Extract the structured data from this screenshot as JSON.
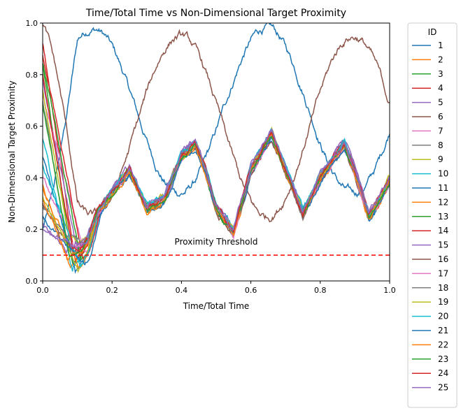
{
  "chart_data": {
    "type": "line",
    "title": "Time/Total Time vs Non-Dimensional Target Proximity",
    "xlabel": "Time/Total Time",
    "ylabel": "Non-Dimensional Target Proximity",
    "xlim": [
      0.0,
      1.0
    ],
    "ylim": [
      0.0,
      1.0
    ],
    "x_ticks": [
      "0.0",
      "0.2",
      "0.4",
      "0.6",
      "0.8",
      "1.0"
    ],
    "y_ticks": [
      "0.0",
      "0.2",
      "0.4",
      "0.6",
      "0.8",
      "1.0"
    ],
    "grid": false,
    "legend": {
      "title": "ID",
      "placement": "outside-right"
    },
    "threshold": {
      "value": 0.1,
      "label": "Proximity Threshold",
      "color": "#ff0000",
      "style": "dashed"
    },
    "series": [
      {
        "name": "1",
        "color": "#1f77b4",
        "start": 0.2,
        "mode": "wave",
        "amp": 0.32,
        "period": 0.5,
        "phase": 0.02,
        "center": 0.66
      },
      {
        "name": "2",
        "color": "#ff7f0e",
        "start": 0.38
      },
      {
        "name": "3",
        "color": "#2ca02c",
        "start": 0.84
      },
      {
        "name": "4",
        "color": "#d62728",
        "start": 0.92
      },
      {
        "name": "5",
        "color": "#9467bd",
        "start": 0.78
      },
      {
        "name": "6",
        "color": "#8c564b",
        "start": 1.0,
        "mode": "wave",
        "amp": 0.35,
        "period": 0.5,
        "phase": 0.27,
        "center": 0.6
      },
      {
        "name": "7",
        "color": "#e377c2",
        "start": 0.72
      },
      {
        "name": "8",
        "color": "#7f7f7f",
        "start": 0.7
      },
      {
        "name": "9",
        "color": "#bcbd22",
        "start": 0.74
      },
      {
        "name": "10",
        "color": "#17becf",
        "start": 0.55
      },
      {
        "name": "11",
        "color": "#1f77b4",
        "start": 0.48
      },
      {
        "name": "12",
        "color": "#ff7f0e",
        "start": 0.36
      },
      {
        "name": "13",
        "color": "#2ca02c",
        "start": 0.85
      },
      {
        "name": "14",
        "color": "#d62728",
        "start": 0.88
      },
      {
        "name": "15",
        "color": "#9467bd",
        "start": 0.22
      },
      {
        "name": "16",
        "color": "#8c564b",
        "start": 0.3
      },
      {
        "name": "17",
        "color": "#e377c2",
        "start": 0.4
      },
      {
        "name": "18",
        "color": "#7f7f7f",
        "start": 0.28
      },
      {
        "name": "19",
        "color": "#bcbd22",
        "start": 0.33
      },
      {
        "name": "20",
        "color": "#17becf",
        "start": 0.45
      },
      {
        "name": "21",
        "color": "#1f77b4",
        "start": 0.25
      },
      {
        "name": "22",
        "color": "#ff7f0e",
        "start": 0.31
      },
      {
        "name": "23",
        "color": "#2ca02c",
        "start": 0.68
      },
      {
        "name": "24",
        "color": "#d62728",
        "start": 0.8
      },
      {
        "name": "25",
        "color": "#9467bd",
        "start": 0.2
      }
    ],
    "common_path": {
      "x": [
        0.1,
        0.13,
        0.16,
        0.2,
        0.25,
        0.3,
        0.35,
        0.4,
        0.44,
        0.47,
        0.5,
        0.55,
        0.6,
        0.66,
        0.7,
        0.75,
        0.8,
        0.87,
        0.9,
        0.94,
        0.97,
        1.0
      ],
      "y": [
        0.12,
        0.16,
        0.27,
        0.34,
        0.43,
        0.28,
        0.32,
        0.48,
        0.53,
        0.42,
        0.28,
        0.19,
        0.43,
        0.57,
        0.43,
        0.26,
        0.4,
        0.53,
        0.42,
        0.25,
        0.31,
        0.39
      ]
    }
  }
}
